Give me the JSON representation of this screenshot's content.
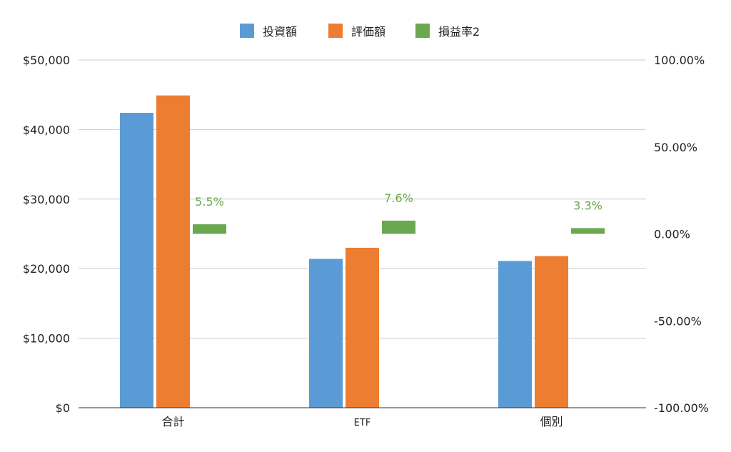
{
  "chart_data": {
    "type": "bar",
    "categories": [
      "合計",
      "ETF",
      "個別"
    ],
    "series": [
      {
        "name": "投資額",
        "axis": "left",
        "color": "#5b9bd5",
        "values": [
          42400,
          21400,
          21100
        ]
      },
      {
        "name": "評価額",
        "axis": "left",
        "color": "#ed7d31",
        "values": [
          44900,
          23000,
          21800
        ]
      },
      {
        "name": "損益率2",
        "axis": "right",
        "color": "#6aa84f",
        "values": [
          5.5,
          7.6,
          3.3
        ],
        "data_labels": [
          "5.5%",
          "7.6%",
          "3.3%"
        ]
      }
    ],
    "y_left": {
      "ylim": [
        0,
        50000
      ],
      "ticks": [
        0,
        10000,
        20000,
        30000,
        40000,
        50000
      ],
      "tick_labels": [
        "$0",
        "$10,000",
        "$20,000",
        "$30,000",
        "$40,000",
        "$50,000"
      ]
    },
    "y_right": {
      "ylim": [
        -100,
        100
      ],
      "ticks": [
        -100,
        -50,
        0,
        50,
        100
      ],
      "tick_labels": [
        "-100.00%",
        "-50.00%",
        "0.00%",
        "50.00%",
        "100.00%"
      ]
    },
    "title": "",
    "xlabel": "",
    "ylabel": "",
    "legend_position": "top",
    "grid": true
  }
}
